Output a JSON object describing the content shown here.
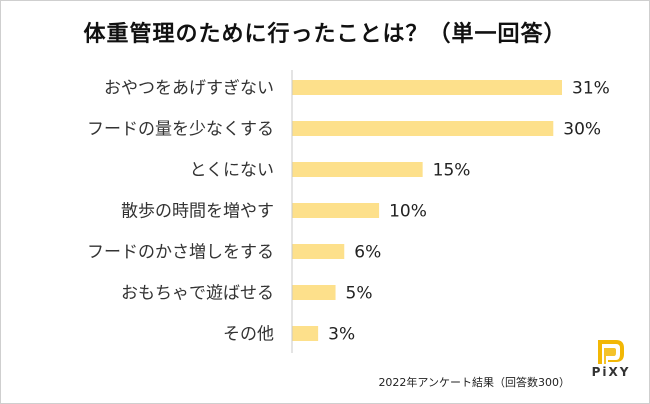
{
  "chart_data": {
    "type": "bar",
    "orientation": "horizontal",
    "title": "体重管理のために行ったことは？（単一回答）",
    "categories": [
      "おやつをあげすぎない",
      "フードの量を少なくする",
      "とくにない",
      "散歩の時間を増やす",
      "フードのかさ増しをする",
      "おもちゃで遊ばせる",
      "その他"
    ],
    "values": [
      31,
      30,
      15,
      10,
      6,
      5,
      3
    ],
    "value_labels": [
      "31%",
      "30%",
      "15%",
      "10%",
      "6%",
      "5%",
      "3%"
    ],
    "xlim": [
      0,
      31
    ],
    "bar_color": "#fde08b",
    "axis_color": "#c8c8c8",
    "grid": false
  },
  "footnote": "2022年アンケート結果（回答数300）",
  "brand": {
    "name": "PiXY",
    "color": "#f2b705"
  }
}
